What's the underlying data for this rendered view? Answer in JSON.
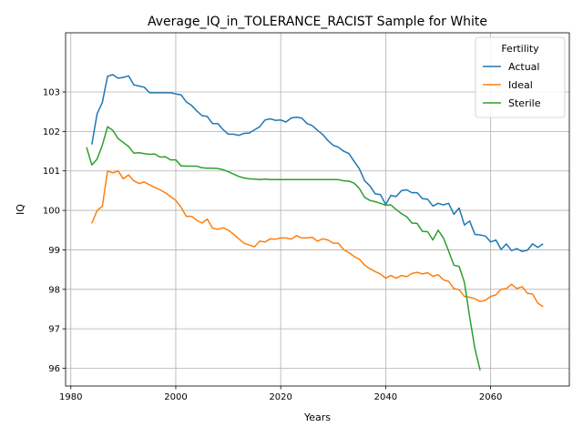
{
  "chart_data": {
    "type": "line",
    "title": "Average_IQ_in_TOLERANCE_RACIST Sample for White",
    "xlabel": "Years",
    "ylabel": "IQ",
    "xlim": [
      1979,
      2075
    ],
    "ylim": [
      95.55,
      104.5
    ],
    "xticks": [
      1980,
      2000,
      2020,
      2040,
      2060
    ],
    "yticks": [
      96,
      97,
      98,
      99,
      100,
      101,
      102,
      103
    ],
    "grid": true,
    "legend": {
      "title": "Fertility",
      "position": "top-right"
    },
    "series": [
      {
        "name": "Actual",
        "color": "#1f77b4",
        "x": [
          1984,
          1985,
          1986,
          1987,
          1988,
          1989,
          1990,
          1991,
          1992,
          1993,
          1994,
          1995,
          1996,
          1997,
          1998,
          1999,
          2000,
          2001,
          2002,
          2003,
          2004,
          2005,
          2006,
          2007,
          2008,
          2009,
          2010,
          2011,
          2012,
          2013,
          2014,
          2015,
          2016,
          2017,
          2018,
          2019,
          2020,
          2021,
          2022,
          2023,
          2024,
          2025,
          2026,
          2027,
          2028,
          2029,
          2030,
          2031,
          2032,
          2033,
          2034,
          2035,
          2036,
          2037,
          2038,
          2039,
          2040,
          2041,
          2042,
          2043,
          2044,
          2045,
          2046,
          2047,
          2048,
          2049,
          2050,
          2051,
          2052,
          2053,
          2054,
          2055,
          2056,
          2057,
          2058,
          2059,
          2060,
          2061,
          2062,
          2063,
          2064,
          2065,
          2066,
          2067,
          2068,
          2069,
          2070
        ],
        "y": [
          101.67,
          102.45,
          102.73,
          103.4,
          103.44,
          103.35,
          103.37,
          103.41,
          103.18,
          103.15,
          103.12,
          102.98,
          102.98,
          102.98,
          102.98,
          102.98,
          102.95,
          102.93,
          102.75,
          102.66,
          102.52,
          102.4,
          102.38,
          102.2,
          102.2,
          102.05,
          101.93,
          101.93,
          101.9,
          101.95,
          101.96,
          102.04,
          102.12,
          102.29,
          102.32,
          102.28,
          102.29,
          102.24,
          102.34,
          102.36,
          102.34,
          102.2,
          102.15,
          102.03,
          101.92,
          101.77,
          101.65,
          101.6,
          101.5,
          101.44,
          101.24,
          101.05,
          100.75,
          100.62,
          100.42,
          100.4,
          100.15,
          100.38,
          100.35,
          100.5,
          100.52,
          100.45,
          100.45,
          100.3,
          100.28,
          100.11,
          100.18,
          100.14,
          100.18,
          99.9,
          100.06,
          99.63,
          99.73,
          99.39,
          99.38,
          99.35,
          99.2,
          99.25,
          99.01,
          99.15,
          98.98,
          99.03,
          98.96,
          98.99,
          99.15,
          99.06,
          99.15
        ]
      },
      {
        "name": "Ideal",
        "color": "#ff7f0e",
        "x": [
          1984,
          1985,
          1986,
          1987,
          1988,
          1989,
          1990,
          1991,
          1992,
          1993,
          1994,
          1995,
          1996,
          1997,
          1998,
          1999,
          2000,
          2001,
          2002,
          2003,
          2004,
          2005,
          2006,
          2007,
          2008,
          2009,
          2010,
          2011,
          2012,
          2013,
          2014,
          2015,
          2016,
          2017,
          2018,
          2019,
          2020,
          2021,
          2022,
          2023,
          2024,
          2025,
          2026,
          2027,
          2028,
          2029,
          2030,
          2031,
          2032,
          2033,
          2034,
          2035,
          2036,
          2037,
          2038,
          2039,
          2040,
          2041,
          2042,
          2043,
          2044,
          2045,
          2046,
          2047,
          2048,
          2049,
          2050,
          2051,
          2052,
          2053,
          2054,
          2055,
          2056,
          2057,
          2058,
          2059,
          2060,
          2061,
          2062,
          2063,
          2064,
          2065,
          2066,
          2067,
          2068,
          2069,
          2070
        ],
        "y": [
          99.67,
          100.0,
          100.1,
          101.0,
          100.95,
          101.0,
          100.8,
          100.9,
          100.75,
          100.68,
          100.72,
          100.65,
          100.58,
          100.52,
          100.45,
          100.35,
          100.25,
          100.08,
          99.85,
          99.85,
          99.75,
          99.68,
          99.78,
          99.55,
          99.52,
          99.56,
          99.5,
          99.4,
          99.28,
          99.17,
          99.12,
          99.08,
          99.22,
          99.2,
          99.28,
          99.27,
          99.3,
          99.3,
          99.27,
          99.36,
          99.3,
          99.3,
          99.32,
          99.22,
          99.28,
          99.25,
          99.17,
          99.17,
          99.0,
          98.93,
          98.83,
          98.76,
          98.61,
          98.52,
          98.45,
          98.39,
          98.28,
          98.35,
          98.28,
          98.35,
          98.32,
          98.4,
          98.43,
          98.39,
          98.42,
          98.33,
          98.37,
          98.24,
          98.2,
          98.02,
          97.99,
          97.82,
          97.8,
          97.76,
          97.69,
          97.72,
          97.82,
          97.86,
          98.0,
          98.02,
          98.13,
          98.02,
          98.07,
          97.9,
          97.88,
          97.65,
          97.56
        ]
      },
      {
        "name": "Sterile",
        "color": "#2ca02c",
        "x": [
          1983,
          1984,
          1985,
          1986,
          1987,
          1988,
          1989,
          1990,
          1991,
          1992,
          1993,
          1994,
          1995,
          1996,
          1997,
          1998,
          1999,
          2000,
          2001,
          2002,
          2003,
          2004,
          2005,
          2006,
          2007,
          2008,
          2009,
          2010,
          2011,
          2012,
          2013,
          2014,
          2015,
          2016,
          2017,
          2018,
          2019,
          2020,
          2021,
          2022,
          2023,
          2024,
          2025,
          2026,
          2027,
          2028,
          2029,
          2030,
          2031,
          2032,
          2033,
          2034,
          2035,
          2036,
          2037,
          2038,
          2039,
          2040,
          2041,
          2042,
          2043,
          2044,
          2045,
          2046,
          2047,
          2048,
          2049,
          2050,
          2051,
          2052,
          2053,
          2054,
          2055,
          2056,
          2057,
          2058
        ],
        "y": [
          101.6,
          101.15,
          101.3,
          101.65,
          102.12,
          102.03,
          101.82,
          101.72,
          101.62,
          101.45,
          101.46,
          101.44,
          101.42,
          101.43,
          101.35,
          101.36,
          101.28,
          101.28,
          101.13,
          101.12,
          101.12,
          101.12,
          101.08,
          101.07,
          101.07,
          101.06,
          101.03,
          100.98,
          100.92,
          100.86,
          100.82,
          100.8,
          100.79,
          100.78,
          100.79,
          100.78,
          100.78,
          100.78,
          100.78,
          100.78,
          100.78,
          100.78,
          100.78,
          100.78,
          100.78,
          100.78,
          100.78,
          100.78,
          100.78,
          100.75,
          100.74,
          100.69,
          100.55,
          100.33,
          100.25,
          100.22,
          100.18,
          100.13,
          100.14,
          100.02,
          99.92,
          99.84,
          99.68,
          99.67,
          99.47,
          99.46,
          99.25,
          99.5,
          99.3,
          98.97,
          98.61,
          98.58,
          98.18,
          97.3,
          96.5,
          95.95
        ]
      }
    ]
  }
}
